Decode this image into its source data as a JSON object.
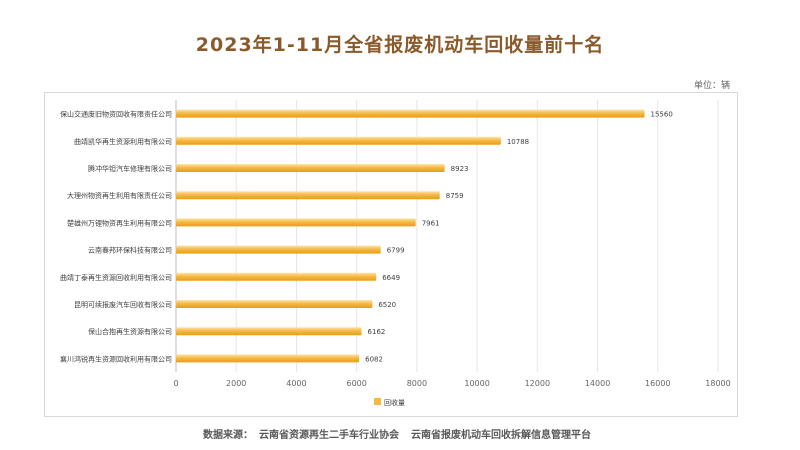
{
  "title": "2023年1-11月全省报废机动车回收量前十名",
  "unit": "单位：辆",
  "source": {
    "label": "数据来源：",
    "org1": "云南省资源再生二手车行业协会",
    "org2": "云南省报废机动车回收拆解信息管理平台"
  },
  "colors": {
    "bar": "#f5b942",
    "bar_light": "#fde5a8",
    "bar_dark": "#e79d1a",
    "grid": "#e6e6e6"
  },
  "chart_data": {
    "type": "bar",
    "orientation": "horizontal",
    "categories": [
      "保山交通废旧物资回收有限责任公司",
      "曲靖凯华再生资源利用有限公司",
      "腾冲华钽汽车修理有限公司",
      "大理州物资再生利用有限责任公司",
      "楚雄州万锂物资再生利用有限公司",
      "云南春邦环保科技有限公司",
      "曲靖丁泰再生资源回收利用有限公司",
      "昆明可续报废汽车回收有限公司",
      "保山合抱再生资源有限公司",
      "襄川鸿锐再生资源回收利用有限公司"
    ],
    "series": [
      {
        "name": "回收量",
        "values": [
          15560,
          10788,
          8923,
          8759,
          7961,
          6799,
          6649,
          6520,
          6162,
          6082
        ]
      }
    ],
    "xlim": [
      0,
      18000
    ],
    "xticks": [
      0,
      2000,
      4000,
      6000,
      8000,
      10000,
      12000,
      14000,
      16000,
      18000
    ],
    "grid": true,
    "legend": "bottom-left"
  }
}
